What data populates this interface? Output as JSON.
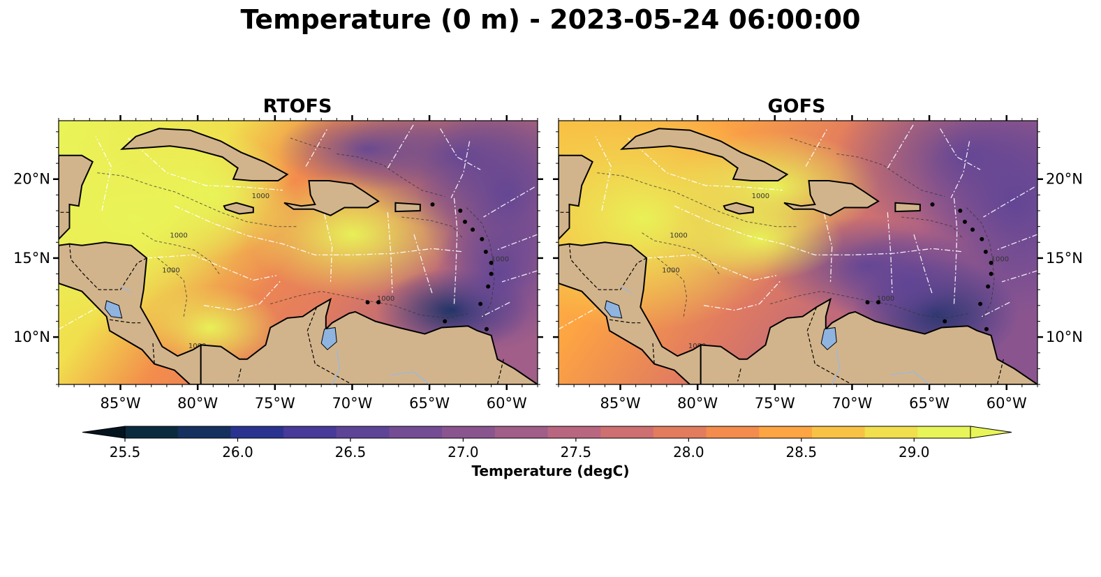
{
  "title": "Temperature (0 m) - 2023-05-24 06:00:00",
  "panels": [
    {
      "title": "RTOFS"
    },
    {
      "title": "GOFS"
    }
  ],
  "map": {
    "extent": {
      "lon": [
        -89,
        -58
      ],
      "lat": [
        7,
        23.7
      ]
    },
    "lon_ticks": [
      {
        "value": -85,
        "label": "85°W"
      },
      {
        "value": -80,
        "label": "80°W"
      },
      {
        "value": -75,
        "label": "75°W"
      },
      {
        "value": -70,
        "label": "70°W"
      },
      {
        "value": -65,
        "label": "65°W"
      },
      {
        "value": -60,
        "label": "60°W"
      }
    ],
    "lat_ticks": [
      {
        "value": 20,
        "label": "20°N"
      },
      {
        "value": 15,
        "label": "15°N"
      },
      {
        "value": 10,
        "label": "10°N"
      }
    ],
    "contour_label": "1000",
    "land_color": "#d2b48c",
    "lake_color": "#8fb4e0"
  },
  "colorbar": {
    "label": "Temperature (degC)",
    "min": 25.5,
    "max": 29.25,
    "step": 0.25,
    "extend": "both",
    "ticks": [
      {
        "value": 25.5,
        "label": "25.5"
      },
      {
        "value": 26.0,
        "label": "26.0"
      },
      {
        "value": 26.5,
        "label": "26.5"
      },
      {
        "value": 27.0,
        "label": "27.0"
      },
      {
        "value": 27.5,
        "label": "27.5"
      },
      {
        "value": 28.0,
        "label": "28.0"
      },
      {
        "value": 28.5,
        "label": "28.5"
      },
      {
        "value": 29.0,
        "label": "29.0"
      }
    ],
    "colors": [
      "#0a2a3e",
      "#15305f",
      "#2a3490",
      "#473a98",
      "#5e4496",
      "#744c93",
      "#8a558f",
      "#a05e89",
      "#b96681",
      "#ce6f72",
      "#e27c5f",
      "#f38c4c",
      "#fda443",
      "#f8c245",
      "#f1df4d",
      "#e8f558"
    ],
    "under_color": "#04141f",
    "over_color": "#e8f558"
  }
}
